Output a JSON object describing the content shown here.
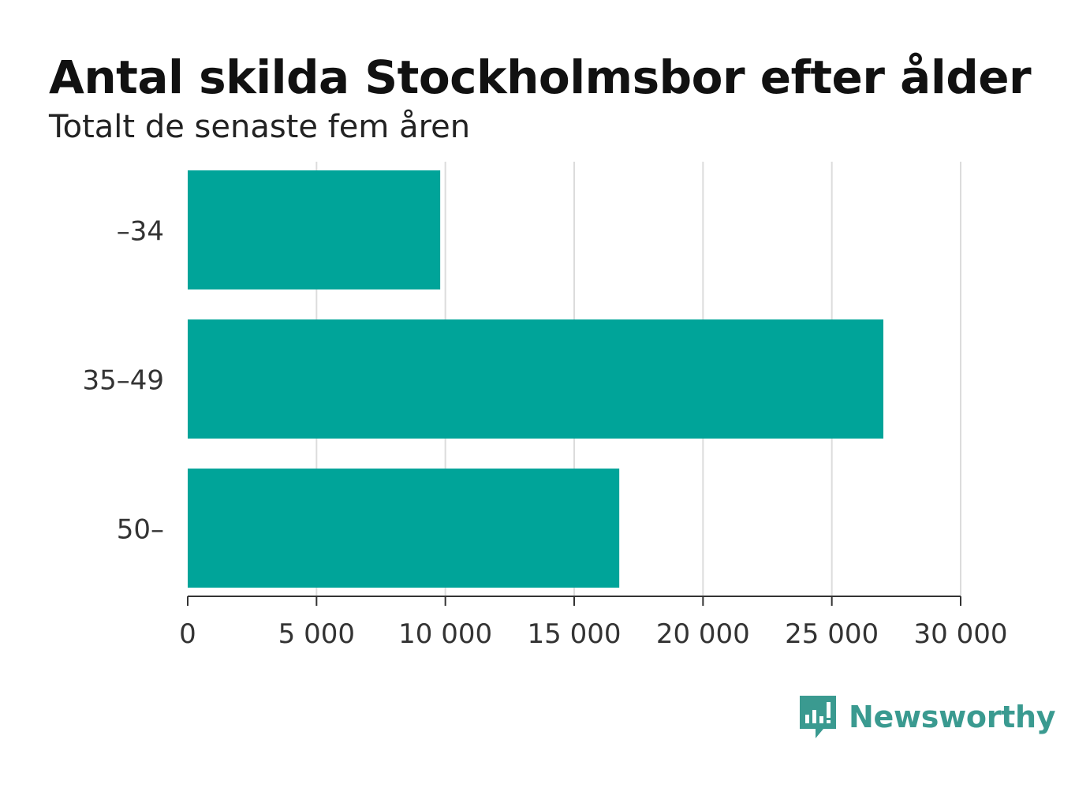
{
  "chart_data": {
    "type": "bar",
    "orientation": "horizontal",
    "title": "Antal skilda Stockholmsbor efter ålder",
    "subtitle": "Totalt de senaste fem åren",
    "categories": [
      "–34",
      "35–49",
      "50–"
    ],
    "values": [
      9800,
      27000,
      16750
    ],
    "xlim": [
      0,
      30000
    ],
    "xticks": [
      0,
      5000,
      10000,
      15000,
      20000,
      25000,
      30000
    ],
    "xtick_labels": [
      "0",
      "5 000",
      "10 000",
      "15 000",
      "20 000",
      "25 000",
      "30 000"
    ],
    "grid": "vertical",
    "bar_color": "#00a499"
  },
  "brand": {
    "name": "Newsworthy",
    "color": "#3a9a90",
    "icon": "bar-chart-speech-bubble-icon"
  }
}
